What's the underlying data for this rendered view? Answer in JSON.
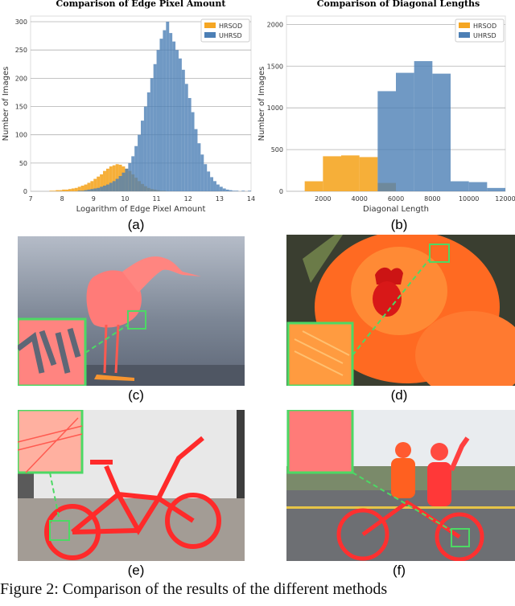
{
  "figure": {
    "sublabels": [
      "(a)",
      "(b)",
      "(c)",
      "(d)",
      "(e)",
      "(f)"
    ],
    "caption": "Figure 2:  Comparison of the results of the different methods"
  },
  "colors": {
    "hrsod": "#f5a623",
    "uhrsd": "#4c7fb5",
    "overlap": "#7d8a7a",
    "mask": "#ff4a4a",
    "zoom_box": "#4cd964"
  },
  "chart_data": [
    {
      "type": "bar",
      "title": "Comparison  of Edge Pixel Amount",
      "xlabel": "Logarithm of Edge Pixel Amount",
      "ylabel": "Number of Images",
      "xlim": [
        7,
        14
      ],
      "ylim": [
        0,
        310
      ],
      "xticks": [
        "7",
        "8",
        "9",
        "10",
        "11",
        "12",
        "13",
        "14"
      ],
      "yticks": [
        "0",
        "50",
        "100",
        "150",
        "200",
        "250",
        "300"
      ],
      "legend": "top-right",
      "bin_start": 7.6,
      "bin_width": 0.1,
      "series": [
        {
          "name": "HRSOD",
          "values": [
            1,
            1,
            2,
            2,
            3,
            3,
            4,
            5,
            6,
            8,
            10,
            12,
            15,
            18,
            22,
            26,
            30,
            36,
            40,
            44,
            46,
            48,
            47,
            44,
            40,
            36,
            30,
            24,
            18,
            13,
            9,
            6,
            4,
            3,
            2,
            1,
            1,
            0,
            0,
            0,
            0,
            0,
            0,
            0,
            0,
            0,
            0,
            0,
            0,
            0,
            0,
            0,
            0,
            0,
            0,
            0,
            0,
            0,
            0,
            0,
            0,
            0,
            0,
            0,
            0
          ]
        },
        {
          "name": "UHRSD",
          "values": [
            0,
            0,
            0,
            0,
            0,
            0,
            0,
            0,
            0,
            1,
            1,
            2,
            3,
            4,
            5,
            6,
            8,
            10,
            12,
            15,
            18,
            22,
            27,
            33,
            40,
            50,
            62,
            80,
            100,
            125,
            150,
            175,
            200,
            225,
            250,
            270,
            285,
            300,
            280,
            265,
            250,
            235,
            215,
            190,
            165,
            140,
            110,
            85,
            65,
            48,
            35,
            25,
            18,
            12,
            8,
            5,
            3,
            2,
            1,
            1,
            0,
            1,
            0,
            1,
            0
          ]
        }
      ]
    },
    {
      "type": "bar",
      "title": "Comparison of Diagonal Lengths",
      "xlabel": "Diagonal Length",
      "ylabel": "Number of Images",
      "xlim": [
        0,
        12000
      ],
      "ylim": [
        0,
        2100
      ],
      "xticks": [
        "2000",
        "4000",
        "6000",
        "8000",
        "10000",
        "12000"
      ],
      "yticks": [
        "0",
        "500",
        "1000",
        "1500",
        "2000"
      ],
      "legend": "top-right",
      "bin_edges": [
        1000,
        2000,
        3000,
        4000,
        5000,
        6000,
        7000,
        8000,
        9000,
        10000,
        11000,
        12000
      ],
      "series": [
        {
          "name": "HRSOD",
          "values": [
            120,
            420,
            430,
            410,
            100,
            0,
            0,
            0,
            0,
            0,
            0
          ]
        },
        {
          "name": "UHRSD",
          "values": [
            0,
            0,
            0,
            0,
            1200,
            1420,
            1560,
            1410,
            120,
            110,
            40
          ]
        }
      ]
    }
  ]
}
